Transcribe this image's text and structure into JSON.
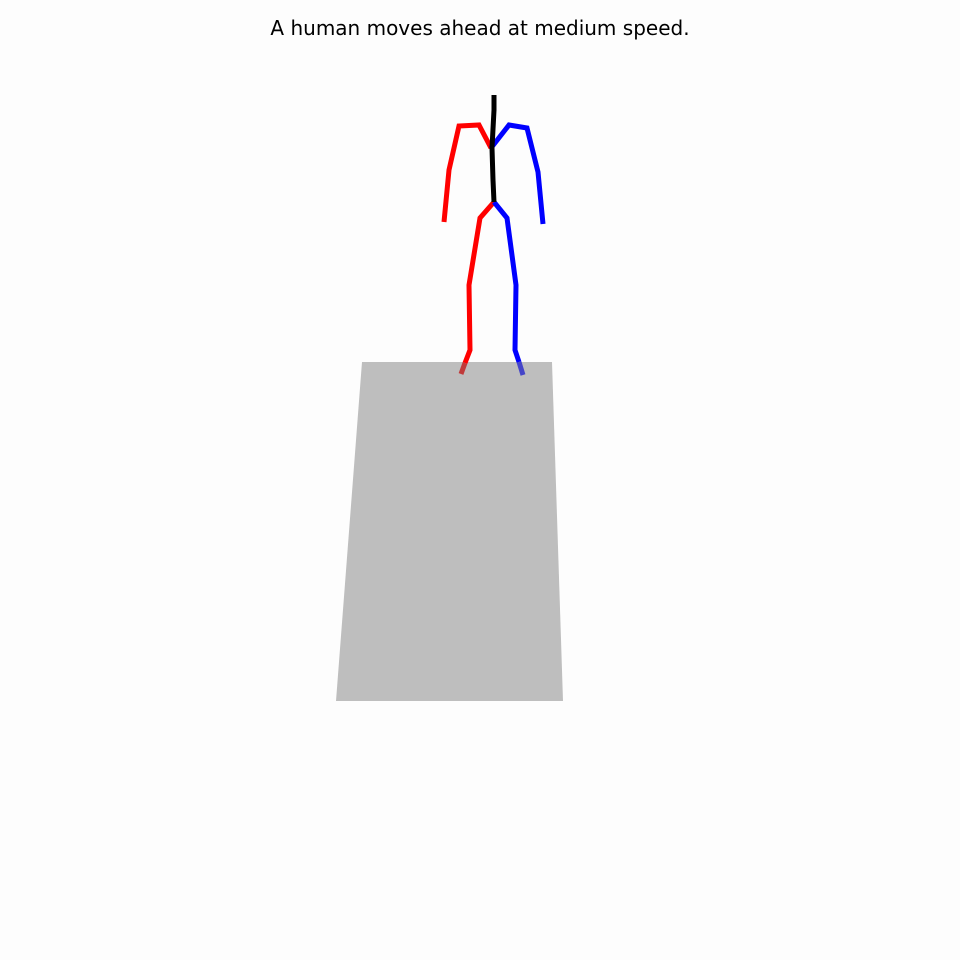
{
  "caption": "A human moves ahead at medium speed.",
  "colors": {
    "background": "#fdfdfd",
    "ground_plane": "#bebebe",
    "right_side_limbs": "#ff0000",
    "left_side_limbs": "#0000ff",
    "spine": "#000000",
    "right_foot": "#c03a3a",
    "left_foot": "#4545c8"
  }
}
